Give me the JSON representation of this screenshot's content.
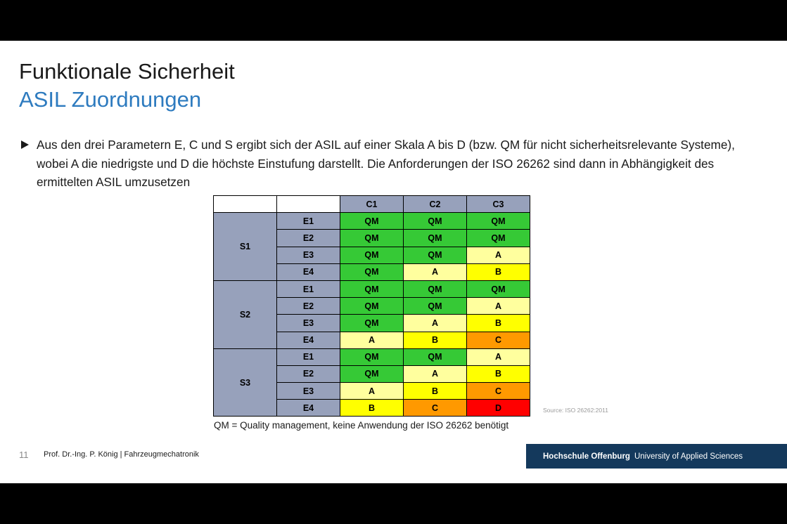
{
  "slide": {
    "title": "Funktionale Sicherheit",
    "subtitle": "ASIL Zuordnungen",
    "bullet": "Aus den drei Parametern E, C und S ergibt sich der ASIL auf einer Skala A bis D (bzw. QM für nicht sicherheitsrelevante Systeme), wobei A die niedrigste und D die höchste Einstufung darstellt. Die Anforderungen der ISO 26262 sind dann in Abhängigkeit des ermittelten ASIL umzusetzen",
    "source": "Source: ISO 26262:2011",
    "caption": "QM = Quality management, keine Anwendung der ISO 26262 benötigt",
    "page_number": "11",
    "footer": "Prof. Dr.-Ing. P. König | Fahrzeugmechatronik",
    "brand_name": "Hochschule Offenburg",
    "brand_sub": "University of Applied Sciences"
  },
  "asil_table": {
    "columns": [
      "C1",
      "C2",
      "C3"
    ],
    "groups": [
      {
        "severity": "S1",
        "rows": [
          {
            "exposure": "E1",
            "values": [
              "QM",
              "QM",
              "QM"
            ]
          },
          {
            "exposure": "E2",
            "values": [
              "QM",
              "QM",
              "QM"
            ]
          },
          {
            "exposure": "E3",
            "values": [
              "QM",
              "QM",
              "A"
            ]
          },
          {
            "exposure": "E4",
            "values": [
              "QM",
              "A",
              "B"
            ]
          }
        ]
      },
      {
        "severity": "S2",
        "rows": [
          {
            "exposure": "E1",
            "values": [
              "QM",
              "QM",
              "QM"
            ]
          },
          {
            "exposure": "E2",
            "values": [
              "QM",
              "QM",
              "A"
            ]
          },
          {
            "exposure": "E3",
            "values": [
              "QM",
              "A",
              "B"
            ]
          },
          {
            "exposure": "E4",
            "values": [
              "A",
              "B",
              "C"
            ]
          }
        ]
      },
      {
        "severity": "S3",
        "rows": [
          {
            "exposure": "E1",
            "values": [
              "QM",
              "QM",
              "A"
            ]
          },
          {
            "exposure": "E2",
            "values": [
              "QM",
              "A",
              "B"
            ]
          },
          {
            "exposure": "E3",
            "values": [
              "A",
              "B",
              "C"
            ]
          },
          {
            "exposure": "E4",
            "values": [
              "B",
              "C",
              "D"
            ]
          }
        ]
      }
    ],
    "colors": {
      "QM": "#36c936",
      "A": "#ffff9e",
      "B": "#ffff00",
      "C": "#ff9900",
      "D": "#ff0000",
      "header": "#97a1bb"
    }
  }
}
